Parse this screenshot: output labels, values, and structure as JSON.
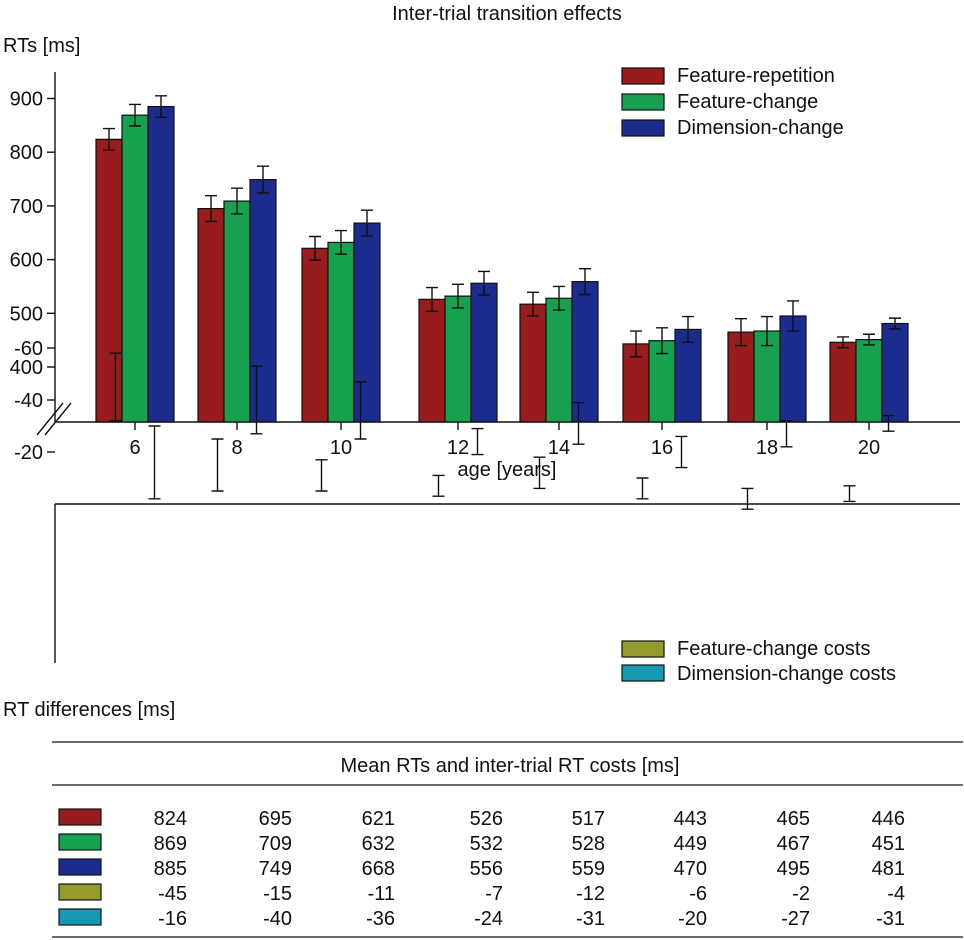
{
  "colors": {
    "feature_repetition": "#981b1e",
    "feature_change": "#16a050",
    "dimension_change": "#1c2c8e",
    "feature_change_costs": "#959a2f",
    "dimension_change_costs": "#1699b3"
  },
  "chart_data": [
    {
      "type": "bar",
      "title": "Inter-trial transition effects",
      "ylabel": "RTs [ms]",
      "xlabel": "age [years]",
      "ylim": [
        340,
        930
      ],
      "yticks": [
        400,
        500,
        600,
        700,
        800,
        900
      ],
      "axis_break": true,
      "legend_position": "top-right",
      "categories": [
        "6",
        "8",
        "10",
        "12",
        "14",
        "16",
        "18",
        "20"
      ],
      "series": [
        {
          "name": "Feature-repetition",
          "color_key": "feature_repetition",
          "values": [
            824,
            695,
            621,
            526,
            517,
            443,
            465,
            446
          ],
          "error": [
            20,
            24,
            22,
            22,
            22,
            24,
            25,
            10
          ]
        },
        {
          "name": "Feature-change",
          "color_key": "feature_change",
          "values": [
            869,
            709,
            632,
            532,
            528,
            449,
            467,
            451
          ],
          "error": [
            20,
            24,
            22,
            22,
            22,
            24,
            27,
            10
          ]
        },
        {
          "name": "Dimension-change",
          "color_key": "dimension_change",
          "values": [
            885,
            749,
            668,
            556,
            559,
            470,
            495,
            481
          ],
          "error": [
            20,
            25,
            24,
            22,
            24,
            24,
            28,
            10
          ]
        }
      ]
    },
    {
      "type": "bar",
      "ylabel": "RT differences [ms]",
      "ylim": [
        -63,
        0
      ],
      "yticks": [
        -20,
        -40,
        -60
      ],
      "legend_position": "bottom-right",
      "categories": [
        "6",
        "8",
        "10",
        "12",
        "14",
        "16",
        "18",
        "20"
      ],
      "series": [
        {
          "name": "Feature-change costs",
          "color_key": "feature_change_costs",
          "values": [
            -45,
            -15,
            -11,
            -7,
            -12,
            -6,
            -2,
            -4
          ],
          "error": [
            13,
            10,
            6,
            4,
            6,
            4,
            4,
            3
          ]
        },
        {
          "name": "Dimension-change costs",
          "color_key": "dimension_change_costs",
          "values": [
            -16,
            -40,
            -36,
            -24,
            -31,
            -20,
            -27,
            -31
          ],
          "error": [
            14,
            13,
            11,
            5,
            8,
            6,
            5,
            3
          ]
        }
      ]
    },
    {
      "type": "table",
      "title": "Mean RTs and inter-trial RT costs [ms]",
      "rows": [
        {
          "color_key": "feature_repetition",
          "values": [
            "824",
            "695",
            "621",
            "526",
            "517",
            "443",
            "465",
            "446"
          ]
        },
        {
          "color_key": "feature_change",
          "values": [
            "869",
            "709",
            "632",
            "532",
            "528",
            "449",
            "467",
            "451"
          ]
        },
        {
          "color_key": "dimension_change",
          "values": [
            "885",
            "749",
            "668",
            "556",
            "559",
            "470",
            "495",
            "481"
          ]
        },
        {
          "color_key": "feature_change_costs",
          "values": [
            "-45",
            "-15",
            "-11",
            "-7",
            "-12",
            "-6",
            "-2",
            "-4"
          ]
        },
        {
          "color_key": "dimension_change_costs",
          "values": [
            "-16",
            "-40",
            "-36",
            "-24",
            "-31",
            "-20",
            "-27",
            "-31"
          ]
        }
      ]
    }
  ]
}
